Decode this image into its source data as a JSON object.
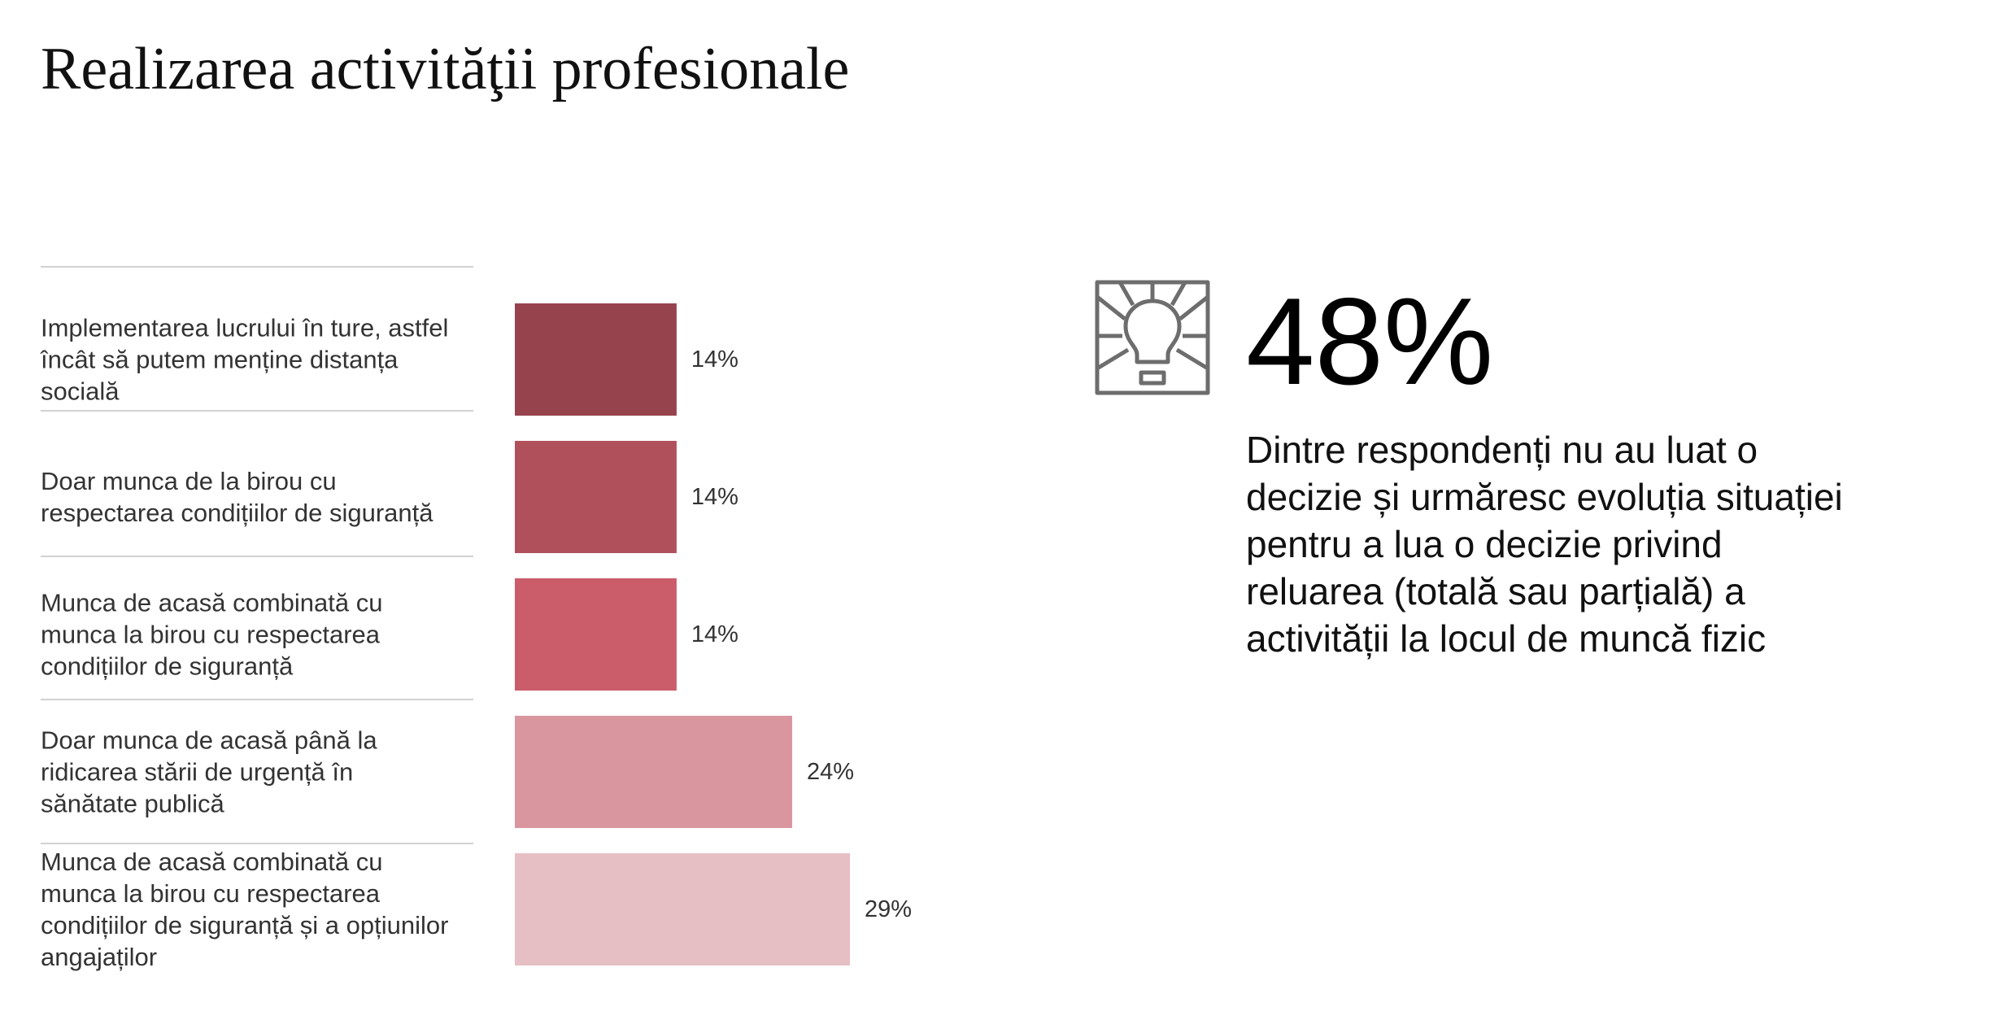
{
  "title": "Realizarea activităţii profesionale",
  "colors": {
    "bar_1": "#96434d",
    "bar_2": "#b0505b",
    "bar_3": "#cb5c6a",
    "bar_4": "#d9969f",
    "bar_5": "#e6bfc4",
    "divider": "#d2d2d2"
  },
  "chart_data": {
    "type": "bar",
    "orientation": "horizontal",
    "value_unit": "%",
    "categories": [
      "Implementarea lucrului în ture, astfel încât să putem menține distanța socială",
      "Doar munca de la birou cu respectarea condițiilor de siguranță",
      "Munca de acasă combinată cu munca la birou cu respectarea condițiilor de siguranță",
      "Doar munca de acasă până la ridicarea stării de urgență în sănătate publică",
      "Munca de acasă combinată cu munca la birou cu respectarea condițiilor de siguranță și a opțiunilor angajaților"
    ],
    "category_lines": [
      [
        "Implementarea lucrului în ture, astfel",
        "încât să putem menține distanța",
        "socială"
      ],
      [
        "Doar munca de la birou cu",
        "respectarea condițiilor de siguranță"
      ],
      [
        "Munca de acasă combinată cu",
        "munca la birou cu respectarea",
        "condițiilor de siguranță"
      ],
      [
        "Doar munca de acasă până la",
        "ridicarea stării de urgență în",
        "sănătate publică"
      ],
      [
        "Munca de acasă combinată cu",
        "munca la birou cu respectarea",
        "condițiilor de siguranță și a opțiunilor",
        "angajaților"
      ]
    ],
    "values": [
      14,
      14,
      14,
      24,
      29
    ],
    "value_labels": [
      "14%",
      "14%",
      "14%",
      "24%",
      "29%"
    ],
    "xlim": [
      0,
      29
    ],
    "grid": false,
    "legend": false
  },
  "stat": {
    "icon": "lightbulb-icon",
    "value": "48%",
    "description": "Dintre respondenți nu au luat o decizie și urmăresc evoluția situației pentru a lua o decizie privind reluarea (totală sau parțială) a activității la locul de muncă fizic"
  }
}
